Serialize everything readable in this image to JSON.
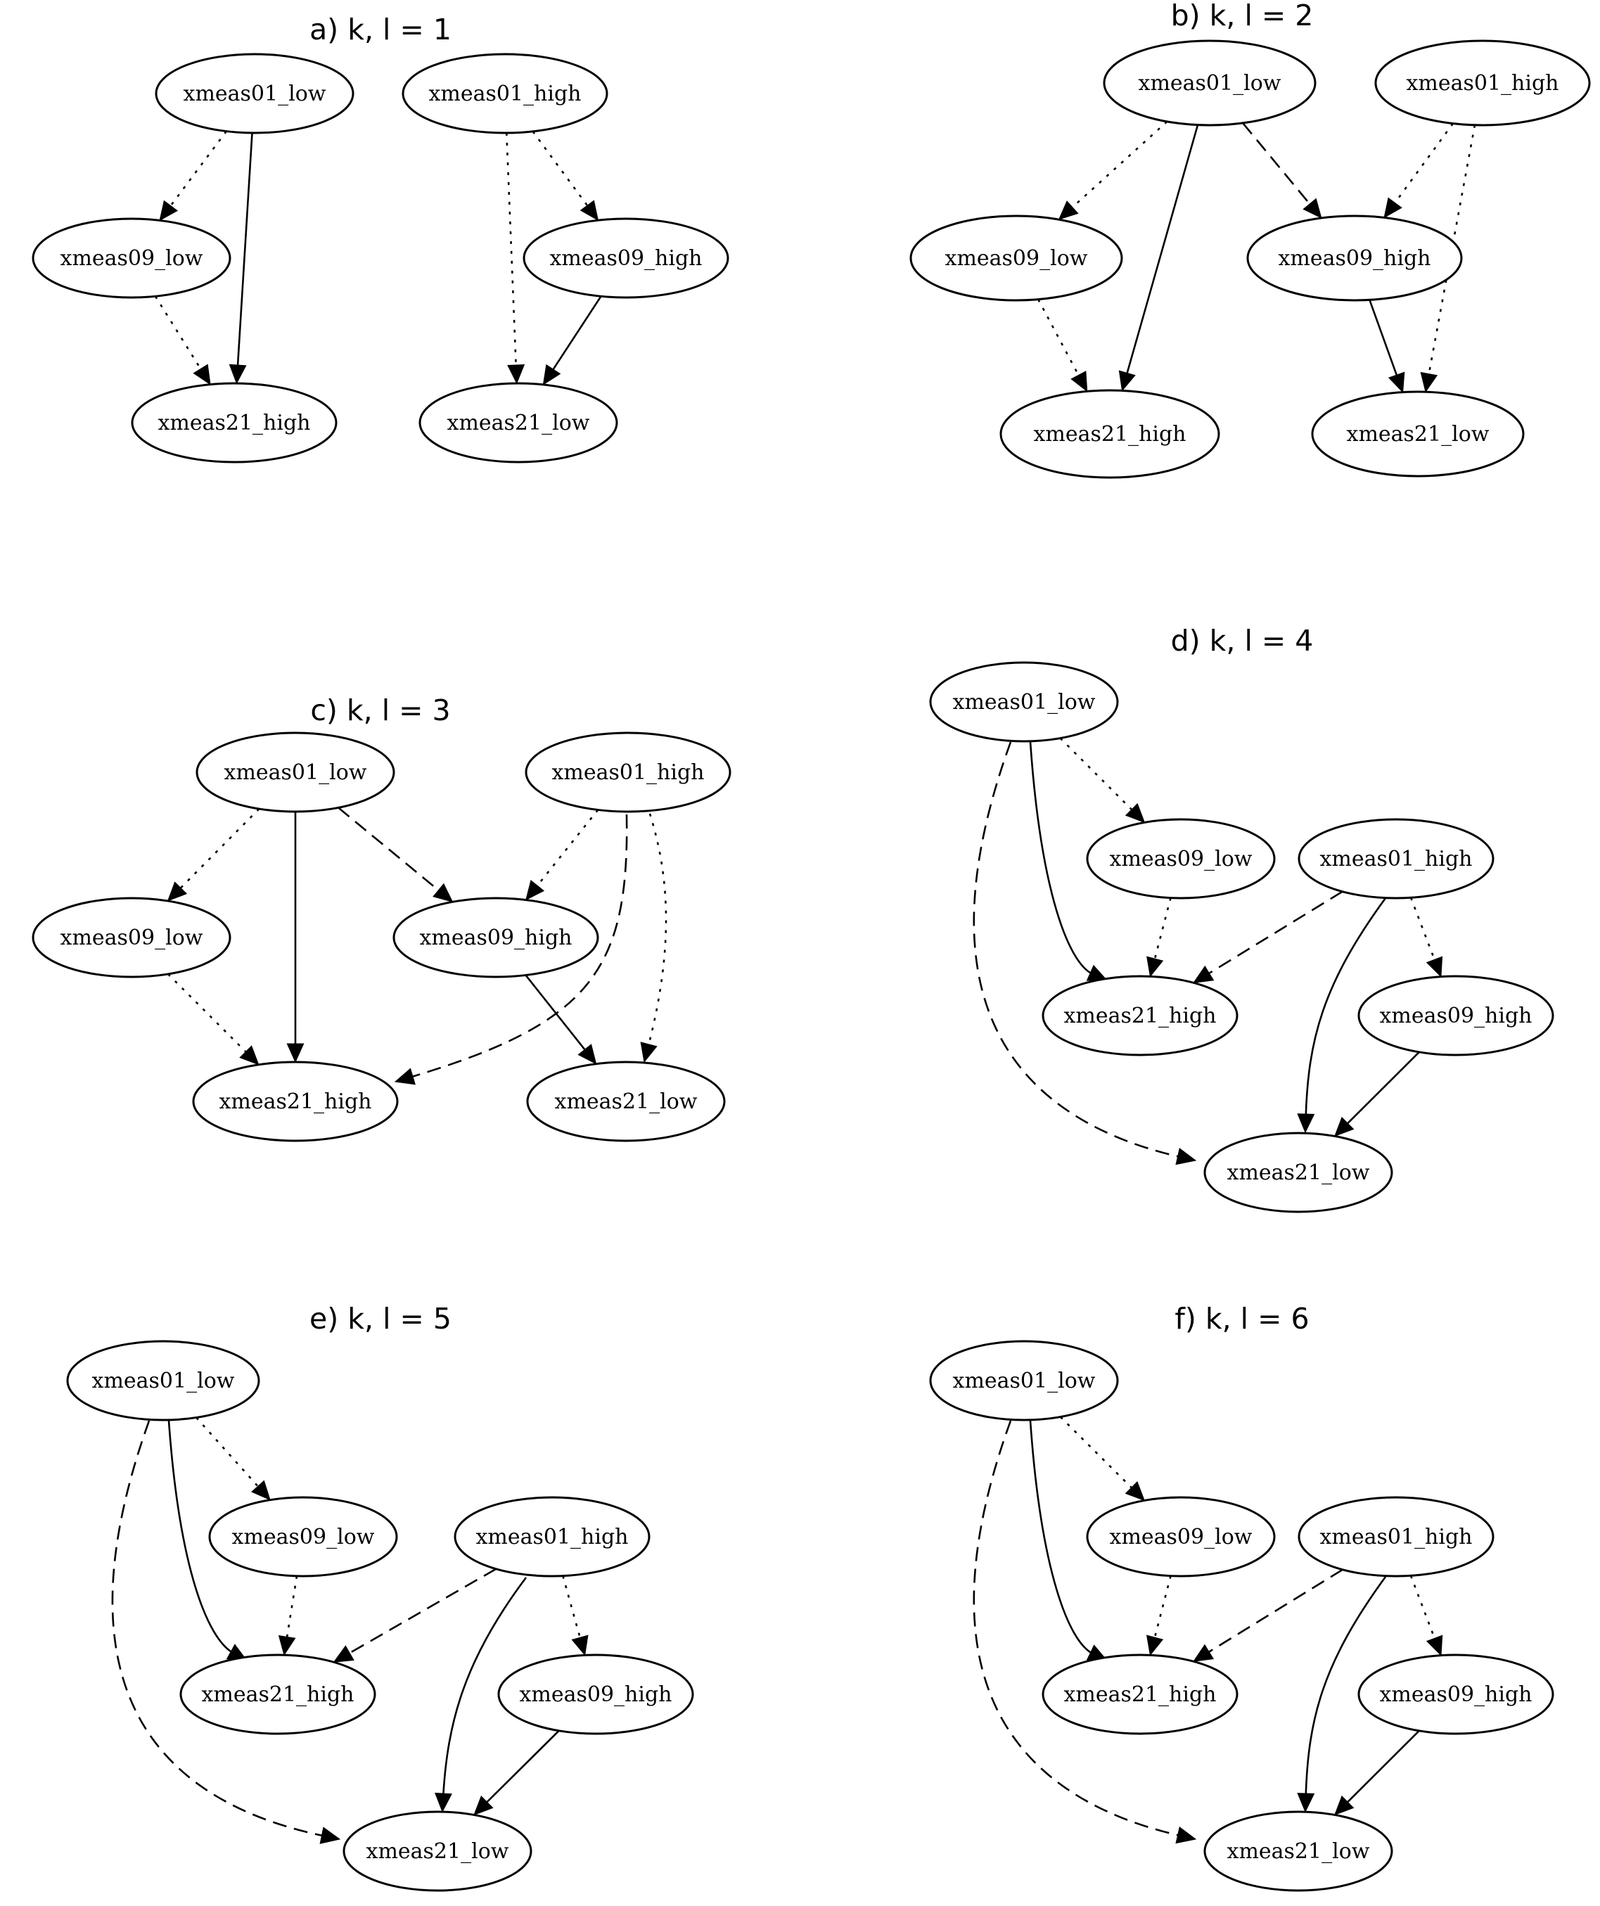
{
  "panels": [
    {
      "id": "a",
      "title": "a) k, l = 1",
      "nodes": [
        {
          "id": "n1",
          "label": "xmeas01_low"
        },
        {
          "id": "n2",
          "label": "xmeas01_high"
        },
        {
          "id": "n3",
          "label": "xmeas09_low"
        },
        {
          "id": "n4",
          "label": "xmeas09_high"
        },
        {
          "id": "n5",
          "label": "xmeas21_high"
        },
        {
          "id": "n6",
          "label": "xmeas21_low"
        }
      ],
      "edges": [
        {
          "from": "n1",
          "to": "n3",
          "style": "dotted"
        },
        {
          "from": "n1",
          "to": "n5",
          "style": "solid"
        },
        {
          "from": "n3",
          "to": "n5",
          "style": "dotted"
        },
        {
          "from": "n2",
          "to": "n4",
          "style": "dotted"
        },
        {
          "from": "n2",
          "to": "n6",
          "style": "dotted"
        },
        {
          "from": "n4",
          "to": "n6",
          "style": "solid"
        }
      ]
    },
    {
      "id": "b",
      "title": "b) k, l = 2",
      "nodes": [
        {
          "id": "n1",
          "label": "xmeas01_low"
        },
        {
          "id": "n2",
          "label": "xmeas01_high"
        },
        {
          "id": "n3",
          "label": "xmeas09_low"
        },
        {
          "id": "n4",
          "label": "xmeas09_high"
        },
        {
          "id": "n5",
          "label": "xmeas21_high"
        },
        {
          "id": "n6",
          "label": "xmeas21_low"
        }
      ],
      "edges": [
        {
          "from": "n1",
          "to": "n3",
          "style": "dotted"
        },
        {
          "from": "n1",
          "to": "n5",
          "style": "solid"
        },
        {
          "from": "n1",
          "to": "n4",
          "style": "dashed"
        },
        {
          "from": "n3",
          "to": "n5",
          "style": "dotted"
        },
        {
          "from": "n2",
          "to": "n4",
          "style": "dotted"
        },
        {
          "from": "n2",
          "to": "n6",
          "style": "dotted"
        },
        {
          "from": "n4",
          "to": "n6",
          "style": "solid"
        }
      ]
    },
    {
      "id": "c",
      "title": "c) k, l = 3",
      "nodes": [
        {
          "id": "n1",
          "label": "xmeas01_low"
        },
        {
          "id": "n2",
          "label": "xmeas01_high"
        },
        {
          "id": "n3",
          "label": "xmeas09_low"
        },
        {
          "id": "n4",
          "label": "xmeas09_high"
        },
        {
          "id": "n5",
          "label": "xmeas21_high"
        },
        {
          "id": "n6",
          "label": "xmeas21_low"
        }
      ],
      "edges": [
        {
          "from": "n1",
          "to": "n3",
          "style": "dotted"
        },
        {
          "from": "n1",
          "to": "n5",
          "style": "solid"
        },
        {
          "from": "n1",
          "to": "n4",
          "style": "dashed"
        },
        {
          "from": "n3",
          "to": "n5",
          "style": "dotted"
        },
        {
          "from": "n2",
          "to": "n4",
          "style": "dotted"
        },
        {
          "from": "n2",
          "to": "n5",
          "style": "dashed"
        },
        {
          "from": "n2",
          "to": "n6",
          "style": "dotted"
        },
        {
          "from": "n4",
          "to": "n6",
          "style": "solid"
        }
      ]
    },
    {
      "id": "d",
      "title": "d) k, l = 4",
      "nodes": [
        {
          "id": "n1",
          "label": "xmeas01_low"
        },
        {
          "id": "n2",
          "label": "xmeas09_low"
        },
        {
          "id": "n3",
          "label": "xmeas01_high"
        },
        {
          "id": "n4",
          "label": "xmeas21_high"
        },
        {
          "id": "n5",
          "label": "xmeas09_high"
        },
        {
          "id": "n6",
          "label": "xmeas21_low"
        }
      ],
      "edges": [
        {
          "from": "n1",
          "to": "n2",
          "style": "dotted"
        },
        {
          "from": "n1",
          "to": "n4",
          "style": "solid"
        },
        {
          "from": "n1",
          "to": "n6",
          "style": "dashed"
        },
        {
          "from": "n2",
          "to": "n4",
          "style": "dotted"
        },
        {
          "from": "n3",
          "to": "n4",
          "style": "dashed"
        },
        {
          "from": "n3",
          "to": "n5",
          "style": "dotted"
        },
        {
          "from": "n3",
          "to": "n6",
          "style": "solid"
        },
        {
          "from": "n5",
          "to": "n6",
          "style": "solid"
        }
      ]
    },
    {
      "id": "e",
      "title": "e) k, l = 5",
      "nodes": [
        {
          "id": "n1",
          "label": "xmeas01_low"
        },
        {
          "id": "n2",
          "label": "xmeas09_low"
        },
        {
          "id": "n3",
          "label": "xmeas01_high"
        },
        {
          "id": "n4",
          "label": "xmeas21_high"
        },
        {
          "id": "n5",
          "label": "xmeas09_high"
        },
        {
          "id": "n6",
          "label": "xmeas21_low"
        }
      ],
      "edges": [
        {
          "from": "n1",
          "to": "n2",
          "style": "dotted"
        },
        {
          "from": "n1",
          "to": "n4",
          "style": "solid"
        },
        {
          "from": "n1",
          "to": "n6",
          "style": "dashed"
        },
        {
          "from": "n2",
          "to": "n4",
          "style": "dotted"
        },
        {
          "from": "n3",
          "to": "n4",
          "style": "dashed"
        },
        {
          "from": "n3",
          "to": "n5",
          "style": "dotted"
        },
        {
          "from": "n3",
          "to": "n6",
          "style": "solid"
        },
        {
          "from": "n5",
          "to": "n6",
          "style": "solid"
        }
      ]
    },
    {
      "id": "f",
      "title": "f) k, l = 6",
      "nodes": [
        {
          "id": "n1",
          "label": "xmeas01_low"
        },
        {
          "id": "n2",
          "label": "xmeas09_low"
        },
        {
          "id": "n3",
          "label": "xmeas01_high"
        },
        {
          "id": "n4",
          "label": "xmeas21_high"
        },
        {
          "id": "n5",
          "label": "xmeas09_high"
        },
        {
          "id": "n6",
          "label": "xmeas21_low"
        }
      ],
      "edges": [
        {
          "from": "n1",
          "to": "n2",
          "style": "dotted"
        },
        {
          "from": "n1",
          "to": "n4",
          "style": "solid"
        },
        {
          "from": "n1",
          "to": "n6",
          "style": "dashed"
        },
        {
          "from": "n2",
          "to": "n4",
          "style": "dotted"
        },
        {
          "from": "n3",
          "to": "n4",
          "style": "dashed"
        },
        {
          "from": "n3",
          "to": "n5",
          "style": "dotted"
        },
        {
          "from": "n3",
          "to": "n6",
          "style": "solid"
        },
        {
          "from": "n5",
          "to": "n6",
          "style": "solid"
        }
      ]
    }
  ]
}
